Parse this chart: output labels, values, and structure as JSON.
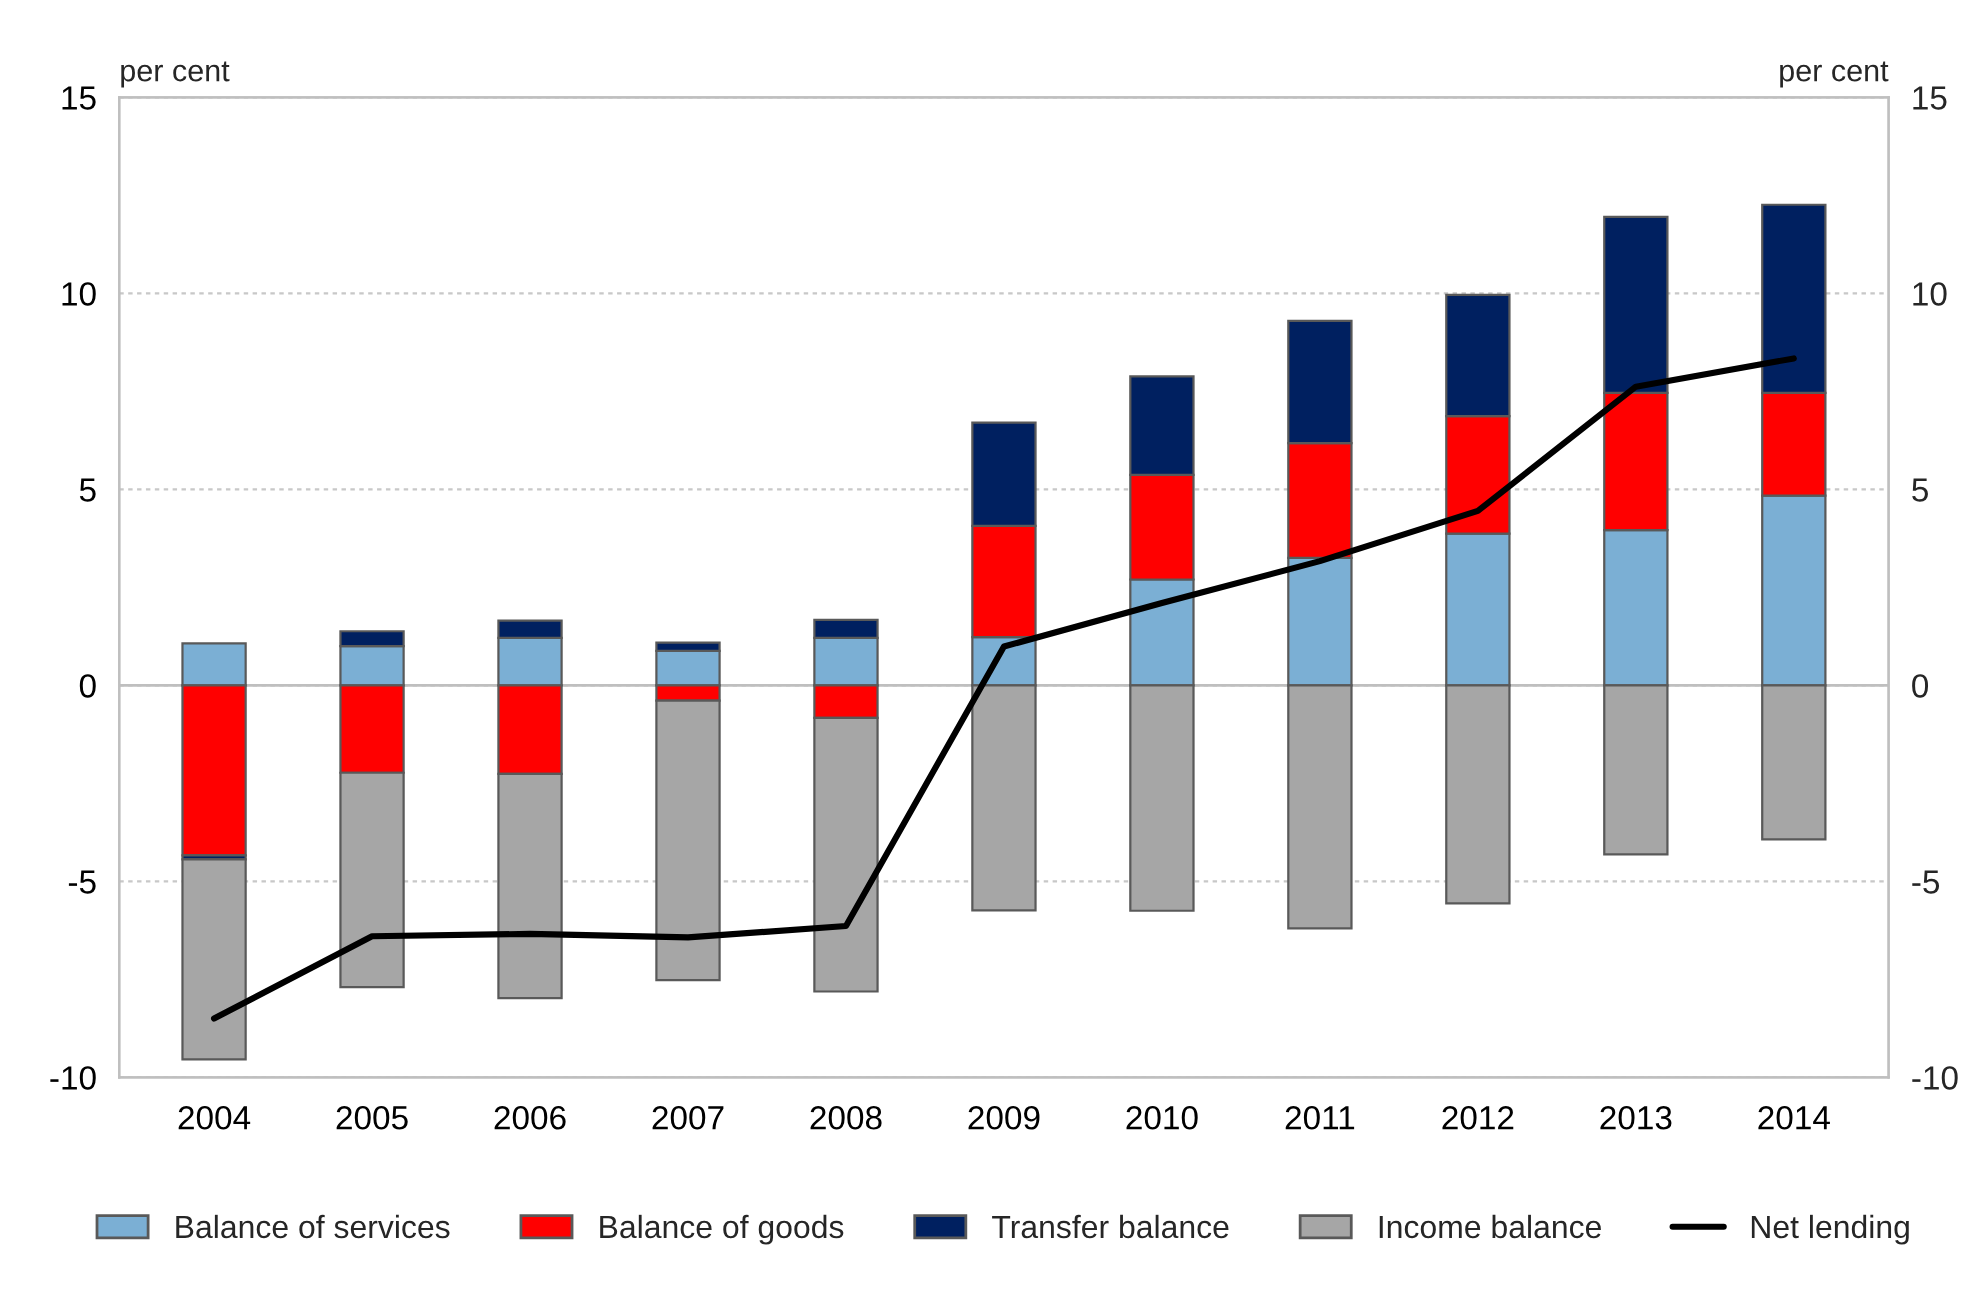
{
  "chart_data": {
    "type": "bar",
    "stacked": true,
    "ylabel": "per cent",
    "y2label": "per cent",
    "categories": [
      "2004",
      "2005",
      "2006",
      "2007",
      "2008",
      "2009",
      "2010",
      "2011",
      "2012",
      "2013",
      "2014"
    ],
    "series": [
      {
        "name": "Balance of services",
        "color": "#7bafd4",
        "values": [
          1.07,
          1.0,
          1.21,
          0.88,
          1.21,
          1.23,
          2.7,
          3.25,
          3.87,
          3.96,
          4.84
        ]
      },
      {
        "name": "Balance of goods",
        "color": "#ff0000",
        "values": [
          -4.34,
          -2.23,
          -2.26,
          -0.39,
          -0.83,
          2.84,
          2.67,
          2.93,
          3.0,
          3.5,
          2.62
        ]
      },
      {
        "name": "Transfer balance",
        "color": "#002060",
        "values": [
          -0.1,
          0.38,
          0.44,
          0.21,
          0.46,
          2.63,
          2.51,
          3.12,
          3.09,
          4.49,
          4.8
        ]
      },
      {
        "name": "Income balance",
        "color": "#a6a6a6",
        "values": [
          -5.1,
          -5.47,
          -5.72,
          -7.13,
          -6.98,
          -5.74,
          -5.75,
          -6.2,
          -5.56,
          -4.31,
          -3.93
        ]
      },
      {
        "name": "Net lending",
        "type": "line",
        "color": "#000000",
        "values": [
          -8.5,
          -6.4,
          -6.34,
          -6.43,
          -6.14,
          0.99,
          2.1,
          3.17,
          4.45,
          7.62,
          8.34
        ]
      }
    ],
    "ylim": [
      -10,
      15
    ],
    "yticks": [
      -10,
      -5,
      0,
      5,
      10,
      15
    ],
    "y2lim": [
      -10,
      15
    ],
    "y2ticks": [
      -10,
      -5,
      0,
      5,
      10,
      15
    ],
    "grid": "y",
    "legend": "bottom",
    "line_style": "solid",
    "marker": "none"
  }
}
